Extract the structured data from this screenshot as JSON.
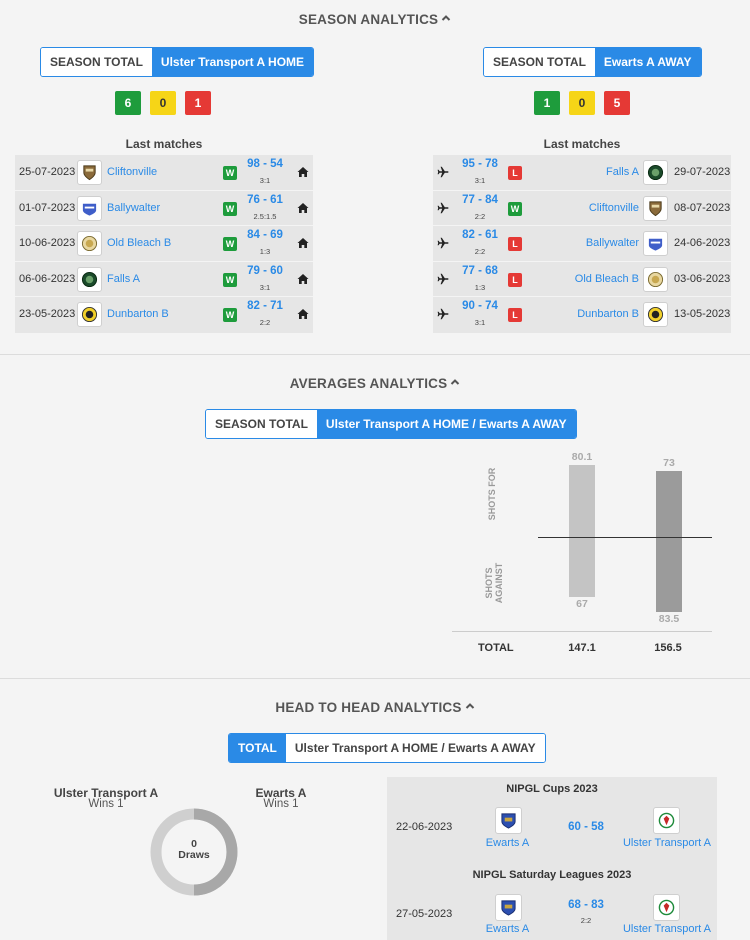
{
  "season": {
    "title": "SEASON ANALYTICS",
    "left": {
      "tabs": [
        "SEASON TOTAL",
        "Ulster Transport A HOME"
      ],
      "badges": [
        "6",
        "0",
        "1"
      ],
      "last_title": "Last matches",
      "matches": [
        {
          "date": "25-07-2023",
          "team": "Cliftonville",
          "crest": "shield-crest",
          "result": "W",
          "score": "98 - 54",
          "sub": "3:1",
          "venue": "home-icon"
        },
        {
          "date": "01-07-2023",
          "team": "Ballywalter",
          "crest": "blue-crest",
          "result": "W",
          "score": "76 - 61",
          "sub": "2.5:1.5",
          "venue": "home-icon"
        },
        {
          "date": "10-06-2023",
          "team": "Old Bleach B",
          "crest": "gold-round-crest",
          "result": "W",
          "score": "84 - 69",
          "sub": "1:3",
          "venue": "home-icon"
        },
        {
          "date": "06-06-2023",
          "team": "Falls A",
          "crest": "green-round-crest",
          "result": "W",
          "score": "79 - 60",
          "sub": "3:1",
          "venue": "home-icon"
        },
        {
          "date": "23-05-2023",
          "team": "Dunbarton B",
          "crest": "yellow-crest",
          "result": "W",
          "score": "82 - 71",
          "sub": "2:2",
          "venue": "home-icon"
        }
      ]
    },
    "right": {
      "tabs": [
        "SEASON TOTAL",
        "Ewarts A AWAY"
      ],
      "badges": [
        "1",
        "0",
        "5"
      ],
      "last_title": "Last matches",
      "matches": [
        {
          "date": "29-07-2023",
          "team": "Falls A",
          "crest": "green-round-crest",
          "result": "L",
          "score": "95 - 78",
          "sub": "3:1",
          "venue": "plane-icon"
        },
        {
          "date": "08-07-2023",
          "team": "Cliftonville",
          "crest": "shield-crest",
          "result": "W",
          "score": "77 - 84",
          "sub": "2:2",
          "venue": "plane-icon"
        },
        {
          "date": "24-06-2023",
          "team": "Ballywalter",
          "crest": "blue-crest",
          "result": "L",
          "score": "82 - 61",
          "sub": "2:2",
          "venue": "plane-icon"
        },
        {
          "date": "03-06-2023",
          "team": "Old Bleach B",
          "crest": "gold-round-crest",
          "result": "L",
          "score": "77 - 68",
          "sub": "1:3",
          "venue": "plane-icon"
        },
        {
          "date": "13-05-2023",
          "team": "Dunbarton B",
          "crest": "yellow-crest",
          "result": "L",
          "score": "90 - 74",
          "sub": "3:1",
          "venue": "plane-icon"
        }
      ]
    }
  },
  "averages": {
    "title": "AVERAGES ANALYTICS",
    "tabs": [
      "SEASON TOTAL",
      "Ulster Transport A HOME / Ewarts A AWAY"
    ],
    "label_for": "SHOTS FOR",
    "label_against": "SHOTS AGAINST",
    "total_label": "TOTAL",
    "home": {
      "for": "80.1",
      "against": "67",
      "total": "147.1",
      "color": "#c4c4c4"
    },
    "away": {
      "for": "73",
      "against": "83.5",
      "total": "156.5",
      "color": "#9b9b9b"
    },
    "scale_max": 85
  },
  "h2h": {
    "title": "HEAD TO HEAD ANALYTICS",
    "tabs": [
      "TOTAL",
      "Ulster Transport A HOME / Ewarts A AWAY"
    ],
    "home_name": "Ulster Transport A",
    "home_wins": "Wins 1",
    "away_name": "Ewarts A",
    "away_wins": "Wins 1",
    "draws_value": "0",
    "draws_label": "Draws",
    "games": [
      {
        "competition": "NIPGL Cups 2023",
        "date": "22-06-2023",
        "home": "Ewarts A",
        "score": "60 - 58",
        "sub": "",
        "away": "Ulster Transport A"
      },
      {
        "competition": "NIPGL Saturday Leagues 2023",
        "date": "27-05-2023",
        "home": "Ewarts A",
        "score": "68 - 83",
        "sub": "2:2",
        "away": "Ulster Transport A"
      }
    ]
  },
  "colors": {
    "accent": "#2a8ae6",
    "win": "#1e9c3c",
    "draw": "#f6d517",
    "loss": "#e53935"
  }
}
